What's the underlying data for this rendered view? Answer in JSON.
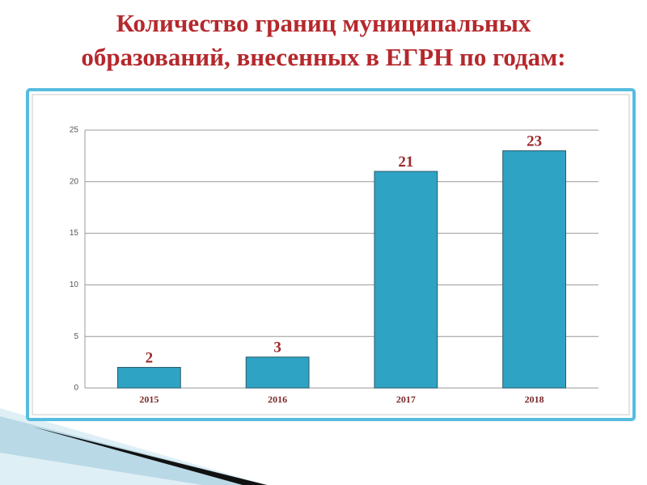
{
  "chart_data": {
    "type": "bar",
    "title": "Количество границ муниципальных образований, внесенных в ЕГРН по годам:",
    "categories": [
      "2015",
      "2016",
      "2017",
      "2018"
    ],
    "values": [
      2,
      3,
      21,
      23
    ],
    "color": "#2fa3c3",
    "ylim": [
      0,
      25
    ],
    "yticks": [
      0,
      5,
      10,
      15,
      20,
      25
    ],
    "grid": true
  }
}
